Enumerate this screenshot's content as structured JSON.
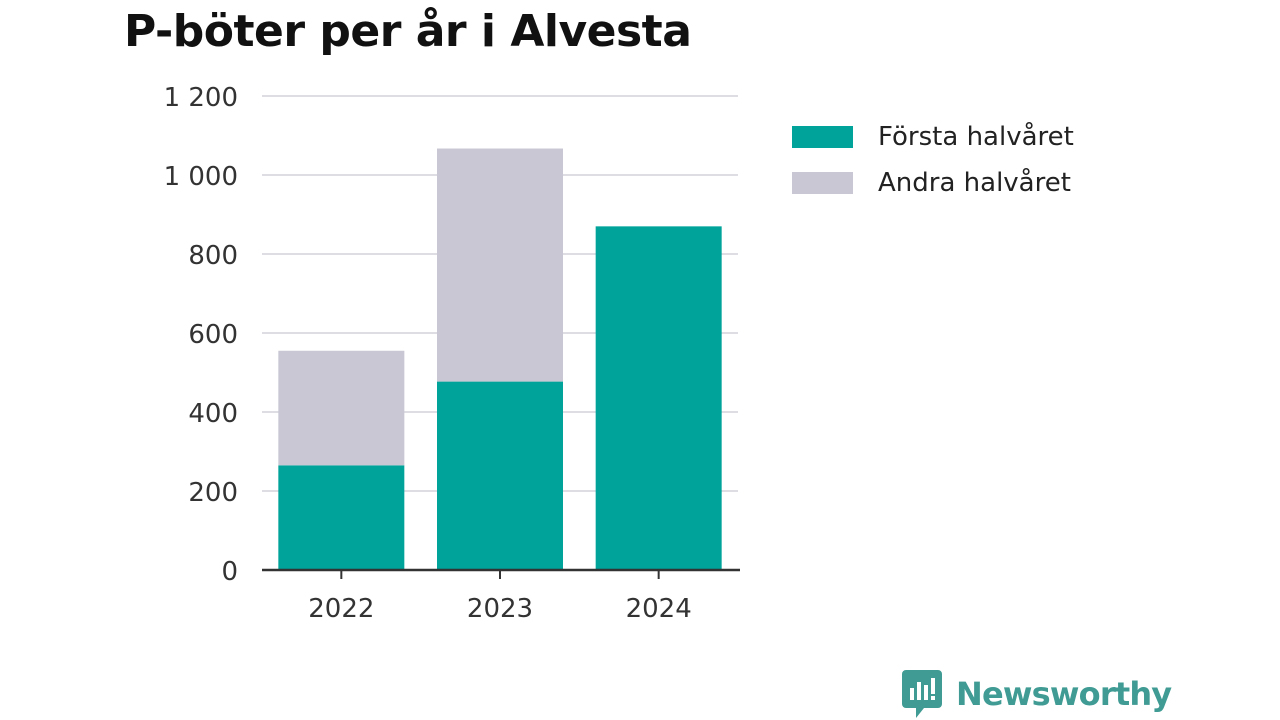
{
  "chart_data": {
    "type": "bar",
    "stacked": true,
    "title": "P-böter per år i Alvesta",
    "categories": [
      "2022",
      "2023",
      "2024"
    ],
    "series": [
      {
        "name": "Första halvåret",
        "color": "#00a39a",
        "values": [
          265,
          477,
          870
        ]
      },
      {
        "name": "Andra halvåret",
        "color": "#c8c7d3",
        "values": [
          290,
          590,
          0
        ]
      }
    ],
    "xlabel": "",
    "ylabel": "",
    "ylim": [
      0,
      1200
    ],
    "yticks": [
      0,
      200,
      400,
      600,
      800,
      1000,
      1200
    ],
    "ytick_labels": [
      "0",
      "200",
      "400",
      "600",
      "800",
      "1 000",
      "1 200"
    ],
    "grid": true,
    "legend_position": "right"
  },
  "brand": {
    "name": "Newsworthy",
    "color": "#3f9b93",
    "icon": "newsworthy-logo-icon"
  }
}
